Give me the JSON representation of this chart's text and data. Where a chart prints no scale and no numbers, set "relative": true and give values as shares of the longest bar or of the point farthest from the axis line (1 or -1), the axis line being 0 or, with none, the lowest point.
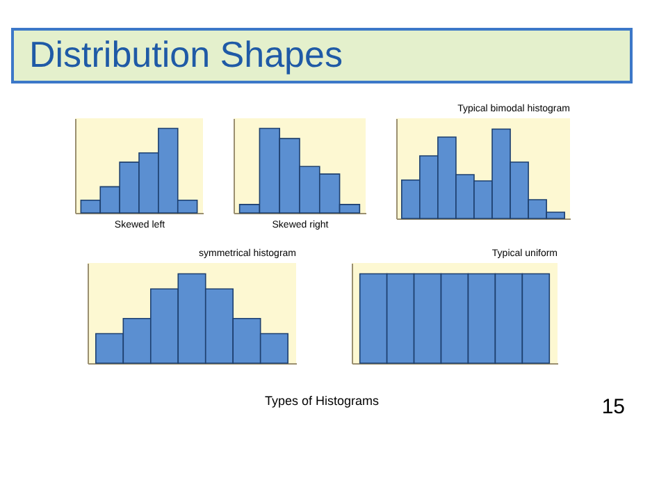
{
  "chart_data": [
    {
      "type": "bar",
      "xlabel": "Skewed left",
      "relative": true,
      "color": "#5b8fd1",
      "categories": [
        null,
        null,
        null,
        null,
        null,
        null
      ],
      "values": [
        0.15,
        0.31,
        0.6,
        0.71,
        1,
        0.15
      ]
    },
    {
      "type": "bar",
      "xlabel": "Skewed right",
      "relative": true,
      "color": "#5b8fd1",
      "categories": [
        null,
        null,
        null,
        null,
        null,
        null
      ],
      "values": [
        0.1,
        1,
        0.88,
        0.55,
        0.46,
        0.1
      ]
    },
    {
      "type": "bar",
      "title": "Typical bimodal histogram",
      "relative": true,
      "color": "#5b8fd1",
      "categories": [
        null,
        null,
        null,
        null,
        null,
        null,
        null,
        null,
        null
      ],
      "values": [
        0.43,
        0.7,
        0.91,
        0.49,
        0.42,
        1,
        0.63,
        0.21,
        0.07
      ]
    },
    {
      "type": "bar",
      "title": "symmetrical histogram",
      "relative": true,
      "color": "#5b8fd1",
      "categories": [
        null,
        null,
        null,
        null,
        null,
        null,
        null
      ],
      "values": [
        0.33,
        0.5,
        0.83,
        1,
        0.83,
        0.5,
        0.33
      ]
    },
    {
      "type": "bar",
      "title": "Typical uniform",
      "relative": true,
      "color": "#5b8fd1",
      "categories": [
        null,
        null,
        null,
        null,
        null,
        null,
        null
      ],
      "values": [
        1,
        1,
        1,
        1,
        1,
        1,
        1
      ]
    },
    {
      "type": "other",
      "title": "Distribution Shapes",
      "annotations": [
        "Types of Histograms",
        "15"
      ]
    }
  ]
}
